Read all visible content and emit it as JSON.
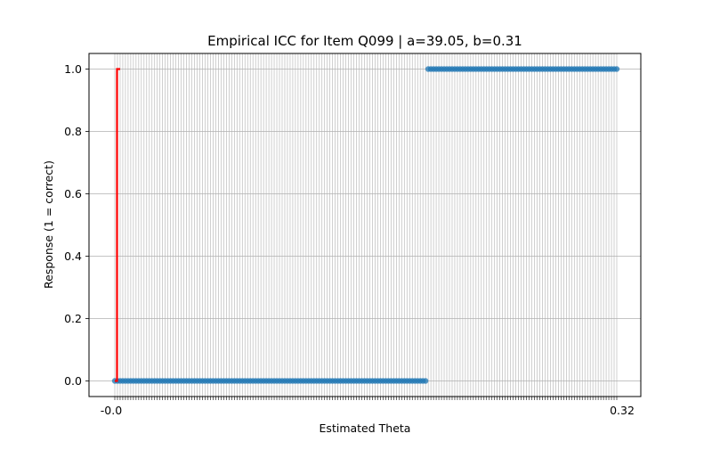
{
  "chart_data": {
    "type": "scatter",
    "title": "Empirical ICC for Item Q099 | a=39.05, b=0.31",
    "xlabel": "Estimated Theta",
    "ylabel": "Response (1 = correct)",
    "ylim": [
      -0.05,
      1.05
    ],
    "y_ticks": [
      0.0,
      0.2,
      0.4,
      0.6,
      0.8,
      1.0
    ],
    "y_tick_labels": [
      "0.0",
      "0.2",
      "0.4",
      "0.6",
      "0.8",
      "1.0"
    ],
    "x_tick_labels_visible": {
      "first": "-0.0",
      "last": "0.32"
    },
    "x_axis_categorical": true,
    "grid": true,
    "series": [
      {
        "kind": "points",
        "color": "#1f77b4",
        "x_start": -0.006,
        "x_end": 0.32,
        "count": 190,
        "threshold_index": 118,
        "y_below_threshold": 0,
        "y_above_threshold": 1
      },
      {
        "kind": "line",
        "color": "#ff0000",
        "values": [
          0,
          1
        ]
      }
    ]
  }
}
